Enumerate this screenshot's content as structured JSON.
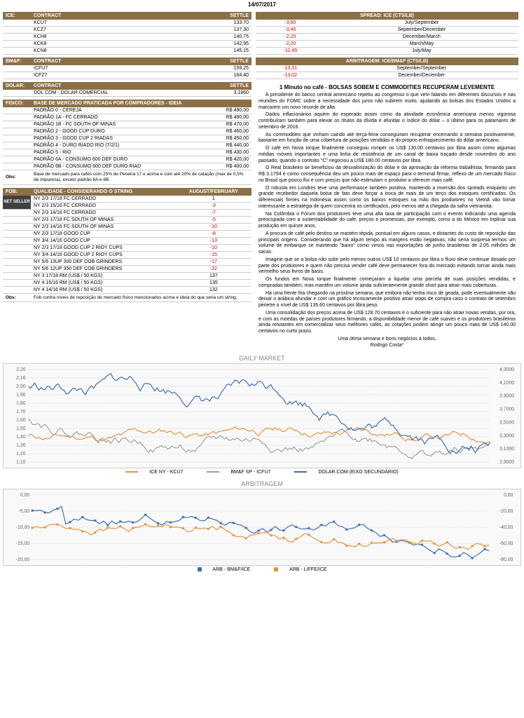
{
  "date": "14/07/2017",
  "ice": {
    "label": "ICE:",
    "headers": [
      "CONTRACT",
      "SETTLE"
    ],
    "rows": [
      {
        "c": "KCU7",
        "s": "133,70"
      },
      {
        "c": "KCZ7",
        "s": "137,30"
      },
      {
        "c": "KCH8",
        "s": "140,75"
      },
      {
        "c": "KCK8",
        "s": "142,95"
      },
      {
        "c": "KCN8",
        "s": "145,15"
      }
    ]
  },
  "bmf": {
    "label": "BM&F:",
    "headers": [
      "CONTRACT",
      "SETTLE"
    ],
    "rows": [
      {
        "c": "ICFU7",
        "s": "159,25"
      },
      {
        "c": "ICFZ7",
        "s": "164,40"
      }
    ]
  },
  "dolar": {
    "label": "DOLAR:",
    "headers": [
      "CONTRACT",
      "SETTLE"
    ],
    "rows": [
      {
        "c": "DOL COM - DOLAR COMERCIAL",
        "s": "3,1860"
      }
    ]
  },
  "fisico": {
    "label": "FISICO:",
    "header": "BASE DE MERCADO PRATICADA POR COMPRADORES - IDEIA",
    "rows": [
      {
        "p": "PADRÃO 0 - CEREJA",
        "v": "R$ 490,00"
      },
      {
        "p": "PADRÃO 1A - FC CERRADO",
        "v": "R$ 480,00"
      },
      {
        "p": "PADRÃO 1B - FC SOUTH OF MINAS",
        "v": "R$ 470,00"
      },
      {
        "p": "PADRÃO 2 - GOOD CUP DURO",
        "v": "R$ 460,00"
      },
      {
        "p": "PADRÃO 3 - GOOD CUP 2 RIADAS",
        "v": "R$ 450,00"
      },
      {
        "p": "PADRÃO 4 - DURO RIADO RIO (7/2/1)",
        "v": "R$ 440,00"
      },
      {
        "p": "PADRÃO 5 - RIO",
        "v": "R$ 430,00"
      },
      {
        "p": "PADRÃO 6A - CONSUMO 600 DEF DURO",
        "v": "R$ 420,00"
      },
      {
        "p": "PADRÃO 6B - CONSUMO 600 DEF DURO RIAD",
        "v": "R$ 400,00"
      }
    ],
    "obs": "Base de mercado para cafés com 25% de Peneira 17 e acima e com até 20% de catação (max de 0,5% de impureza), exceto padrão 6A e 6B."
  },
  "fob": {
    "label": "FOB:",
    "header": "QUALIDADE - CONSIDERANDO O STRING",
    "header2": "AUGUST/FEBRUARY",
    "net": "NET SELLER",
    "rows": [
      {
        "q": "NY 2/3 17/18 FC CERRADO",
        "v": "1",
        "red": false
      },
      {
        "q": "NY 2/3 15/16 FC CERRADO",
        "v": "-3",
        "red": true
      },
      {
        "q": "NY 2/3 14/16 FC CERRADO",
        "v": "-7",
        "red": true
      },
      {
        "q": "NY 2/3 17/18 FC SOUTH OF MINAS",
        "v": "-5",
        "red": true
      },
      {
        "q": "NY 2/3 14/16 FC SOUTH OF MINAS",
        "v": "-10",
        "red": true
      },
      {
        "q": "NY 2/3 17/18 GOOD CUP",
        "v": "-8",
        "red": true
      },
      {
        "q": "NY 3/4 14/16 GOOD CUP",
        "v": "-13",
        "red": true
      },
      {
        "q": "NY 2/3 17/18 GOOD CUP 2 RIOY CUPS",
        "v": "-10",
        "red": true
      },
      {
        "q": "NY 3/4 14/16 GOOD CUP 2 RIOY CUPS",
        "v": "-15",
        "red": true
      },
      {
        "q": "NY 5/6 13UP 300 DEF COB GRINDERS",
        "v": "-17",
        "red": true
      },
      {
        "q": "NY 5/6 12UP 350 DEF COB GRINDERS",
        "v": "-22",
        "red": true
      },
      {
        "q": "NY 3 17/18 RM (US$ / 50 KGS)",
        "v": "137",
        "red": false
      },
      {
        "q": "NY 4 15/16 RM (US$ / 50 KGS)",
        "v": "135",
        "red": false
      },
      {
        "q": "NY 4 14/16 RM (US$ / 50 KGS)",
        "v": "132",
        "red": false
      }
    ],
    "obs": "Fob contra níveis de reposição de mercado físico mencionados acima e ideia do que seria um string."
  },
  "spread": {
    "header": "SPREAD: ICE (CTS/LB)",
    "rows": [
      {
        "v": "-3,60",
        "m": "July/September"
      },
      {
        "v": "-3,45",
        "m": "September/December"
      },
      {
        "v": "-2,20",
        "m": "December/March"
      },
      {
        "v": "-2,20",
        "m": "March/May"
      },
      {
        "v": "-11,45",
        "m": "July/May"
      }
    ]
  },
  "arb": {
    "header": "ARBITRAGEM: ICE/BM&F (CTS/LB)",
    "rows": [
      {
        "v": "-13,31",
        "m": "September/September"
      },
      {
        "v": "-13,02",
        "m": "December/December"
      }
    ]
  },
  "article": {
    "title": "1 Minuto no café - BOLSAS SOBEM E COMMODITIES RECUPERAM LEVEMENTE",
    "paragraphs": [
      "A presidente do banco central americano repetiu ao congresso o que vem falando em diferentes discursos e nas reuniões do FOMC sobre a necessidade dos juros não subirem muito, ajudando as bolsas dos Estados Unidos a marcarem um novo recorde de alta.",
      "Dados inflacionários aquém do esperado assim como da atividade econômica americana menos vigorosa contribuíram também para elevar os títulos da dívida e afundar o índice do dólar – o último para os patamares de setembro de 2016.",
      "As commodities que vinham caindo até terça-feira conseguiram recuperar encerrando a semana positivamente, bastante em função de uma cobertura de posições vendidas e do próprio enfraquecimento do dólar americano.",
      "O café em Nova Iorque finalmente conseguiu romper os US$ 130.00 centavos por libra assim como algumas médias móveis importantes e uma linha de resistência de um canal de baixa traçado desde novembro do ano passado, quando o contrato \"C\" negociou a US$ 180.00 centavos por libra.",
      "O Real brasileiro se beneficiou da desvalorização do dólar e da aprovação da reforma trabalhista, firmando para R$ 3.1794 e como consequência deu um pouco mais de espaço para o terminal firmar, reflexo de um mercado físico no Brasil que pouco flui e com preços que não estimulam o produtor a oferecer mais café.",
      "O robusta em Londres teve uma performance também positiva, mantendo a inversão dos spreads enquanto um grande recebedor daquela bolsa de fato deve forçar a troca de mais de um terço dos estoques certificados. Os diferenciais firmes na Indonésia assim como os baixos estoques na mão dos produtores no Vietnã vão tornar interessante a estratégia de quem concentra os certificados, pelo menos até a chegada da safra vietnamita.",
      "Na Colômbia o Fórum dos produtores teve uma alta taxa de participação com o evento indicando uma agenda preocupada com a sustentabilidade do café, preços e promessas, por exemplo, como a do México em triplicar sua produção em quinze anos.",
      "A procura de café pelo destino se mantém tépida, pontual em alguns casos, e distantes do custo de reposição das principais origens. Considerando que há algum tempo as margens estão negativas, não seria surpresa termos um volume de embarque se mantendo \"baixo\" como vimos nas exportações de junho brasileiras de 2.05 milhões de sacas.",
      "Imagine que se a bolsa não subir pelo menos outros US$ 10 centavos por libra o fluxo deve continuar dosado por parte dos produtores e quem não precisa vender café deve permanecer fora do mercado evitando tornar ainda mais vermelho seus livros de basis.",
      "Os fundos em Nova Iorque finalmente começaram a liquidar uma parcela de suas posições vendidas, e compradas também, mas mantêm um volume ainda suficientemente grande short para atrair mais coberturas.",
      "Há uma frente fria chegando na próxima semana, que embora não tenha risco de geada, pode eventualmente não deixar o arábica afundar e com um gráfico tecnicamente positivo atrair stops de compra caso o contrato de setembro penetre o nível de US$ 135.60 centavos por libra peso.",
      "Uma consolidação dos preços acima de US$ 128.70 centavos é o suficiente para não atrair novas vendas, por ora, e com as moedas de países produtores firmando, a disponibilidade menor de café suaves e os produtores brasileiros ainda relutantes em comercializar seus melhores cafés, as cotações podem atingir um pouco mais de US$ 140.00 centavos no curto prazo."
    ],
    "closing": "Uma ótima semana e bons negócios a todos,",
    "author": "Rodrigo Costa*"
  },
  "chart_daily": {
    "title": "DAILY MARKET",
    "left_ticks": [
      "2,20",
      "2,10",
      "2,00",
      "1,90",
      "1,80",
      "1,70",
      "1,60",
      "1,50",
      "1,40",
      "1,30",
      "1,20",
      "1,10"
    ],
    "right_ticks": [
      "4,3000",
      "4,1000",
      "3,9000",
      "3,7000",
      "3,5000",
      "3,3000",
      "3,1000",
      "2,9000"
    ],
    "series": [
      {
        "name": "ICE NY - KCU7",
        "color": "#E8923C"
      },
      {
        "name": "BM&F SP - ICFU7",
        "color": "#A0A0A0"
      },
      {
        "name": "DOLAR.COM (EIXO SECUNDÁRIO)",
        "color": "#3B6FB6"
      }
    ]
  },
  "chart_arb": {
    "title": "ARBITRAGEM",
    "left_ticks": [
      "0,00",
      "-5,00",
      "-10,00",
      "-15,00",
      "-20,00"
    ],
    "right_ticks": [
      "0,00",
      "-20,00",
      "-40,00",
      "-60,00",
      "-80,00"
    ],
    "series": [
      {
        "name": "ARB - BM&F/ICE",
        "color": "#3B6FB6"
      },
      {
        "name": "ARB - LIFFE/ICE",
        "color": "#E8923C"
      }
    ]
  },
  "obs_label": "Obs:"
}
